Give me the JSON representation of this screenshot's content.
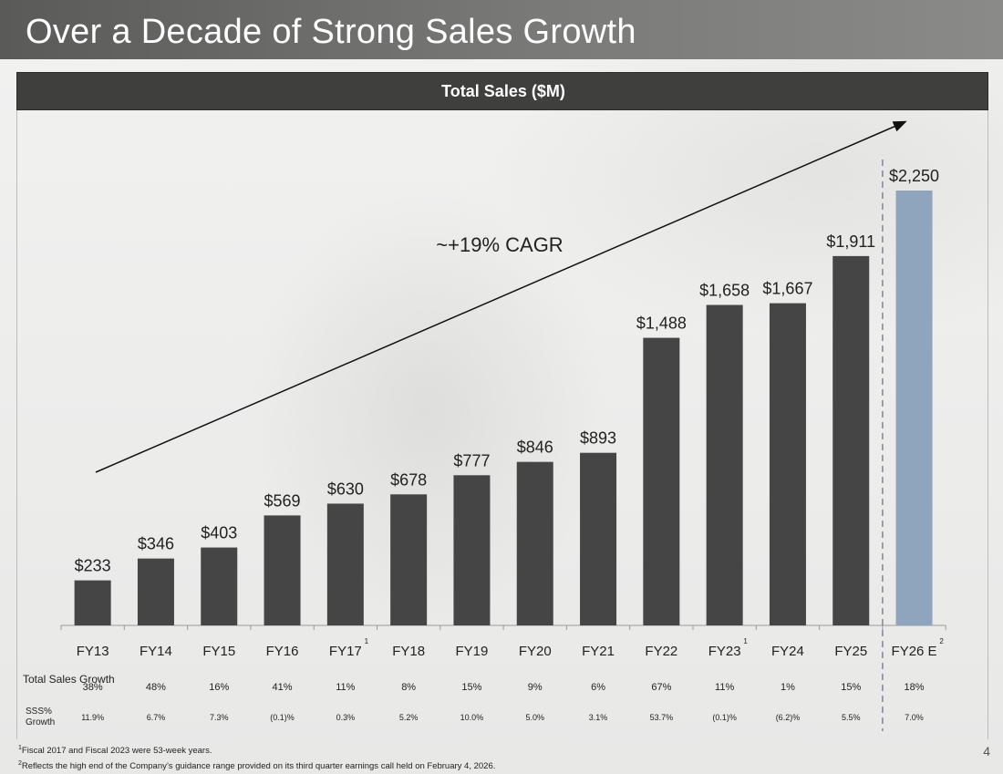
{
  "page": {
    "title": "Over a Decade of Strong Sales Growth",
    "page_number": "4"
  },
  "chart_data": {
    "type": "bar",
    "title": "Total Sales ($M)",
    "categories": [
      "FY13",
      "FY14",
      "FY15",
      "FY16",
      "FY17",
      "FY18",
      "FY19",
      "FY20",
      "FY21",
      "FY22",
      "FY23",
      "FY24",
      "FY25",
      "FY26 E"
    ],
    "category_footnotes": [
      "",
      "",
      "",
      "",
      "1",
      "",
      "",
      "",
      "",
      "",
      "1",
      "",
      "",
      "2"
    ],
    "values": [
      233,
      346,
      403,
      569,
      630,
      678,
      777,
      846,
      893,
      1488,
      1658,
      1667,
      1911,
      2250
    ],
    "value_labels": [
      "$233",
      "$346",
      "$403",
      "$569",
      "$630",
      "$678",
      "$777",
      "$846",
      "$893",
      "$1,488",
      "$1,658",
      "$1,667",
      "$1,911",
      "$2,250"
    ],
    "estimate_index": 13,
    "ylim": [
      0,
      2500
    ],
    "grid": false,
    "annotation": "~+19% CAGR",
    "colors": {
      "actual": "#454545",
      "estimate": "#8fa4bd"
    },
    "table_rows": [
      {
        "label": "Total Sales Growth",
        "values": [
          "38%",
          "48%",
          "16%",
          "41%",
          "11%",
          "8%",
          "15%",
          "9%",
          "6%",
          "67%",
          "11%",
          "1%",
          "15%",
          "18%"
        ]
      },
      {
        "label": "SSS% Growth",
        "values": [
          "11.9%",
          "6.7%",
          "7.3%",
          "(0.1)%",
          "0.3%",
          "5.2%",
          "10.0%",
          "5.0%",
          "3.1%",
          "53.7%",
          "(0.1)%",
          "(6.2)%",
          "5.5%",
          "7.0%"
        ]
      }
    ]
  },
  "footnotes": [
    {
      "mark": "1",
      "text": "Fiscal 2017 and Fiscal 2023 were 53-week years."
    },
    {
      "mark": "2",
      "text": "Reflects the high end of the Company’s guidance range provided on its third quarter earnings call held on February 4, 2026."
    }
  ]
}
